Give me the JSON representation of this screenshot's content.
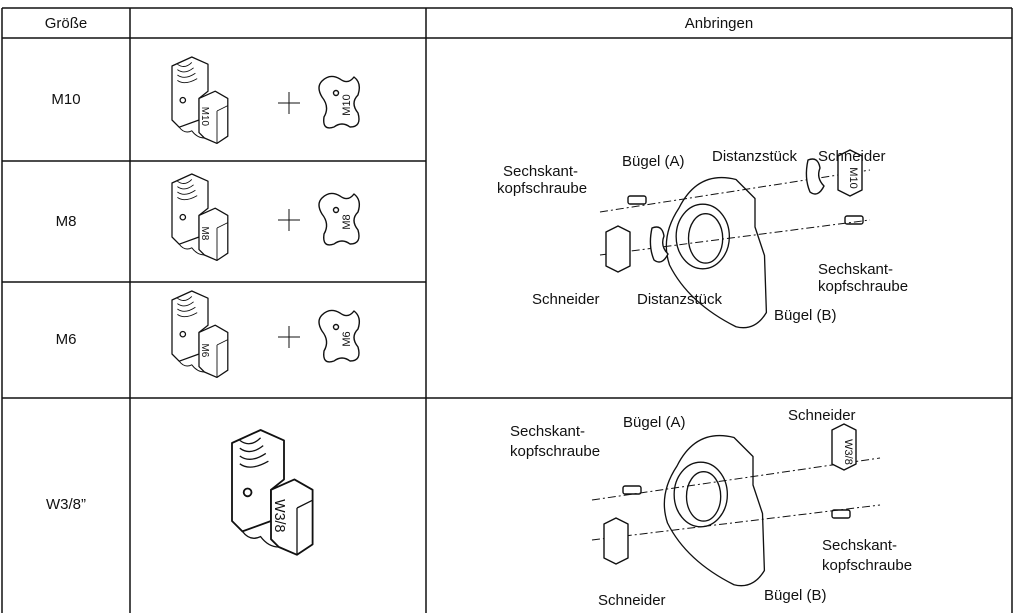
{
  "table": {
    "header": {
      "size": "Größe",
      "mounting": "Anbringen"
    },
    "rows": [
      {
        "size": "M10",
        "cutter_stamp": "M10",
        "spacer_stamp": "M10"
      },
      {
        "size": "M8",
        "cutter_stamp": "M8",
        "spacer_stamp": "M8"
      },
      {
        "size": "M6",
        "cutter_stamp": "M6",
        "spacer_stamp": "M6"
      },
      {
        "size": "W3/8”",
        "cutter_stamp": "W3/8"
      }
    ],
    "diagrams": [
      {
        "cutter_stamp": "M10",
        "labels": [
          "Sechskant-",
          "kopfschraube",
          "Bügel (A)",
          "Distanzstück",
          "Schneider",
          "Sechskant-",
          "kopfschraube",
          "Schneider",
          "Distanzstück",
          "Bügel (B)"
        ]
      },
      {
        "cutter_stamp": "W3/8",
        "labels": [
          "Sechskant-",
          "kopfschraube",
          "Bügel (A)",
          "Schneider",
          "Sechskant-",
          "kopfschraube",
          "Schneider",
          "Bügel (B)"
        ]
      }
    ]
  }
}
